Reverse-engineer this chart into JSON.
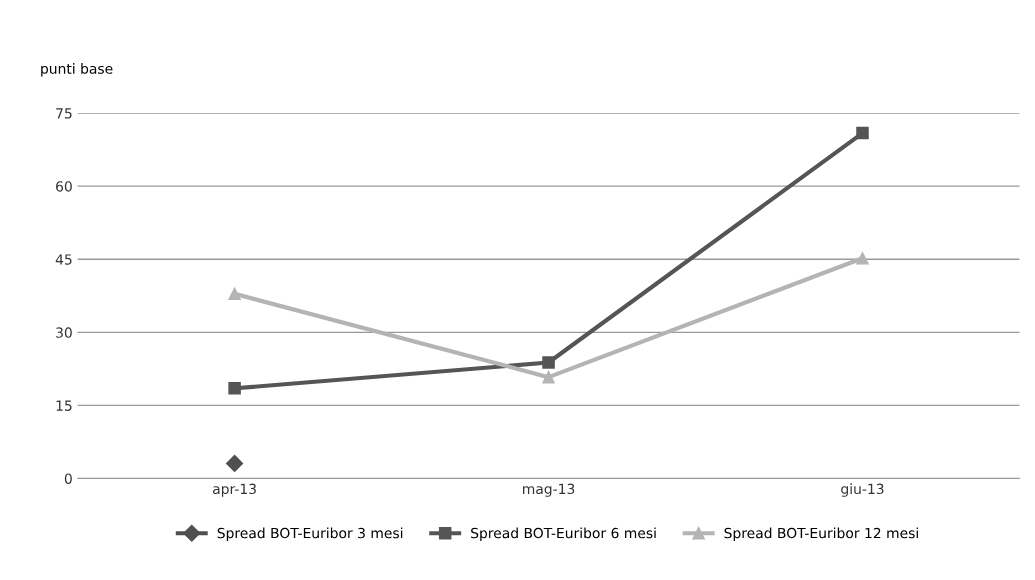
{
  "chart_data": {
    "type": "line",
    "ylabel": "punti base",
    "categories": [
      "apr-13",
      "mag-13",
      "giu-13"
    ],
    "series": [
      {
        "name": "Spread BOT-Euribor 3 mesi",
        "color": "#505050",
        "marker": "diamond",
        "values": [
          3.1,
          null,
          null
        ]
      },
      {
        "name": "Spread BOT-Euribor 6 mesi",
        "color": "#555555",
        "marker": "square",
        "values": [
          18.5,
          23.8,
          70.9
        ]
      },
      {
        "name": "Spread BOT-Euribor 12 mesi",
        "color": "#b4b4b4",
        "marker": "triangle",
        "values": [
          37.9,
          20.8,
          45.2
        ]
      }
    ],
    "ylim": [
      0,
      75
    ],
    "yticks": [
      0,
      15,
      30,
      45,
      60,
      75
    ],
    "grid": "y",
    "legend": "bottom",
    "line_style": "solid"
  }
}
